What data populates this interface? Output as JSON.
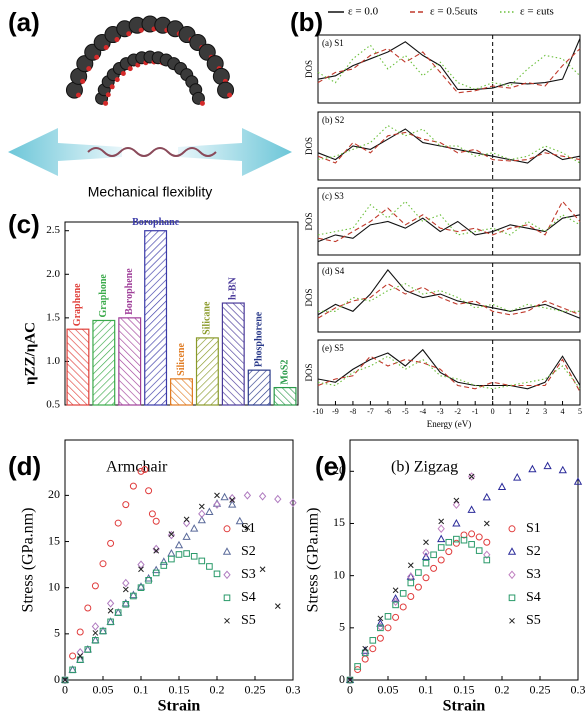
{
  "panel_a": {
    "label": "(a)",
    "caption": "Mechanical flexiblity"
  },
  "chart_data": [
    {
      "type": "line",
      "panel_label": "(b)",
      "title": "(a) S1",
      "ylabel": "DOS",
      "xlim": [
        -10,
        5
      ],
      "ylim": [
        0,
        1
      ],
      "vline": 0,
      "x": [
        -10,
        -9,
        -8,
        -7,
        -6,
        -5,
        -4,
        -3,
        -2,
        -1,
        0,
        1,
        2,
        3,
        4,
        5
      ],
      "series": [
        {
          "name": "ε = 0.0",
          "color": "#111111",
          "dash": "solid",
          "values": [
            0.35,
            0.4,
            0.55,
            0.65,
            0.75,
            0.9,
            0.7,
            0.55,
            0.2,
            0.2,
            0.22,
            0.3,
            0.28,
            0.3,
            0.35,
            0.95
          ]
        },
        {
          "name": "ε = 0.5εuts",
          "color": "#c0392b",
          "dash": "dashed",
          "values": [
            0.3,
            0.45,
            0.5,
            0.7,
            0.8,
            0.6,
            0.75,
            0.45,
            0.15,
            0.18,
            0.25,
            0.22,
            0.3,
            0.25,
            0.55,
            0.8
          ]
        },
        {
          "name": "ε = εuts",
          "color": "#6abf3a",
          "dash": "dotted",
          "values": [
            0.45,
            0.3,
            0.65,
            0.85,
            0.5,
            0.7,
            0.4,
            0.6,
            0.3,
            0.2,
            0.3,
            0.25,
            0.5,
            0.7,
            0.65,
            0.4
          ]
        }
      ]
    },
    {
      "type": "line",
      "title": "(b) S2",
      "ylabel": "DOS",
      "xlim": [
        -10,
        5
      ],
      "ylim": [
        0,
        1
      ],
      "vline": 0,
      "x": [
        -10,
        -9,
        -8,
        -7,
        -6,
        -5,
        -4,
        -3,
        -2,
        -1,
        0,
        1,
        2,
        3,
        4,
        5
      ],
      "series": [
        {
          "color": "#111111",
          "dash": "solid",
          "values": [
            0.4,
            0.3,
            0.5,
            0.45,
            0.6,
            0.75,
            0.55,
            0.5,
            0.45,
            0.4,
            0.35,
            0.3,
            0.25,
            0.45,
            0.3,
            0.35
          ]
        },
        {
          "color": "#c0392b",
          "dash": "dashed",
          "values": [
            0.35,
            0.25,
            0.55,
            0.4,
            0.65,
            0.7,
            0.6,
            0.55,
            0.4,
            0.45,
            0.3,
            0.28,
            0.3,
            0.4,
            0.35,
            0.3
          ]
        },
        {
          "color": "#6abf3a",
          "dash": "dotted",
          "values": [
            0.3,
            0.35,
            0.45,
            0.55,
            0.8,
            0.65,
            0.75,
            0.5,
            0.5,
            0.35,
            0.4,
            0.3,
            0.35,
            0.5,
            0.4,
            0.25
          ]
        }
      ]
    },
    {
      "type": "line",
      "title": "(c) S3",
      "ylabel": "DOS",
      "xlim": [
        -10,
        5
      ],
      "ylim": [
        0,
        1
      ],
      "vline": 0,
      "x": [
        -10,
        -9,
        -8,
        -7,
        -6,
        -5,
        -4,
        -3,
        -2,
        -1,
        0,
        1,
        2,
        3,
        4,
        5
      ],
      "series": [
        {
          "color": "#111111",
          "dash": "solid",
          "values": [
            0.2,
            0.3,
            0.25,
            0.45,
            0.5,
            0.4,
            0.55,
            0.35,
            0.5,
            0.3,
            0.35,
            0.45,
            0.4,
            0.35,
            0.55,
            0.6
          ]
        },
        {
          "color": "#c0392b",
          "dash": "dashed",
          "values": [
            0.25,
            0.2,
            0.35,
            0.5,
            0.7,
            0.45,
            0.6,
            0.4,
            0.35,
            0.4,
            0.3,
            0.4,
            0.45,
            0.3,
            0.8,
            0.5
          ]
        },
        {
          "color": "#6abf3a",
          "dash": "dotted",
          "values": [
            0.3,
            0.35,
            0.4,
            0.75,
            0.55,
            0.8,
            0.5,
            0.6,
            0.3,
            0.35,
            0.4,
            0.3,
            0.5,
            0.35,
            0.6,
            0.45
          ]
        }
      ]
    },
    {
      "type": "line",
      "title": "(d) S4",
      "ylabel": "DOS",
      "xlim": [
        -10,
        5
      ],
      "ylim": [
        0,
        1
      ],
      "vline": 0,
      "x": [
        -10,
        -9,
        -8,
        -7,
        -6,
        -5,
        -4,
        -3,
        -2,
        -1,
        0,
        1,
        2,
        3,
        4,
        5
      ],
      "series": [
        {
          "color": "#111111",
          "dash": "solid",
          "values": [
            0.25,
            0.4,
            0.3,
            0.55,
            0.9,
            0.6,
            0.5,
            0.55,
            0.45,
            0.4,
            0.35,
            0.3,
            0.35,
            0.4,
            0.3,
            0.2
          ]
        },
        {
          "color": "#c0392b",
          "dash": "dashed",
          "values": [
            0.2,
            0.35,
            0.45,
            0.5,
            0.7,
            0.55,
            0.65,
            0.5,
            0.4,
            0.45,
            0.3,
            0.25,
            0.3,
            0.45,
            0.35,
            0.25
          ]
        },
        {
          "color": "#6abf3a",
          "dash": "dotted",
          "values": [
            0.3,
            0.3,
            0.5,
            0.45,
            0.6,
            0.7,
            0.55,
            0.6,
            0.5,
            0.35,
            0.4,
            0.3,
            0.4,
            0.35,
            0.3,
            0.3
          ]
        }
      ]
    },
    {
      "type": "line",
      "title": "(e) S5",
      "ylabel": "DOS",
      "xlabel": "Energy (eV)",
      "xlim": [
        -10,
        5
      ],
      "ylim": [
        0,
        1
      ],
      "vline": 0,
      "xticks": [
        -10,
        -9,
        -8,
        -7,
        -6,
        -5,
        -4,
        -3,
        -2,
        -1,
        0,
        1,
        2,
        3,
        4,
        5
      ],
      "x": [
        -10,
        -9,
        -8,
        -7,
        -6,
        -5,
        -4,
        -3,
        -2,
        -1,
        0,
        1,
        2,
        3,
        4,
        5
      ],
      "series": [
        {
          "color": "#111111",
          "dash": "solid",
          "values": [
            0.4,
            0.35,
            0.55,
            0.7,
            0.8,
            0.6,
            0.85,
            0.5,
            0.35,
            0.3,
            0.3,
            0.3,
            0.25,
            0.35,
            0.75,
            0.3
          ]
        },
        {
          "color": "#c0392b",
          "dash": "dashed",
          "values": [
            0.3,
            0.4,
            0.45,
            0.75,
            0.6,
            0.7,
            0.65,
            0.55,
            0.3,
            0.25,
            0.35,
            0.3,
            0.3,
            0.3,
            0.7,
            0.2
          ]
        },
        {
          "color": "#6abf3a",
          "dash": "dotted",
          "values": [
            0.35,
            0.3,
            0.5,
            0.6,
            0.75,
            0.55,
            0.7,
            0.45,
            0.4,
            0.3,
            0.25,
            0.3,
            0.35,
            0.4,
            0.6,
            0.25
          ]
        }
      ]
    },
    {
      "type": "bar",
      "panel_label": "(c)",
      "ylabel": "ηZZ/ηAC",
      "ylim": [
        0.5,
        2.6
      ],
      "yticks": [
        0.5,
        {
          "value": 1,
          "label": "1.0"
        },
        1.5,
        {
          "value": 2,
          "label": "2.0"
        },
        2.5
      ],
      "categories": [
        "Graphene",
        "Graphone",
        "Borophene",
        "Borophane",
        "Silicene",
        "Silicane",
        "h-BN",
        "Phosphorene",
        "MoS2"
      ],
      "values": [
        1.37,
        1.47,
        1.5,
        2.5,
        0.8,
        1.27,
        1.67,
        0.9,
        0.7
      ],
      "colors": [
        "#e0403a",
        "#3aaa4a",
        "#a0409a",
        "#3a3aa8",
        "#e07a20",
        "#8a9a2a",
        "#4a3a9a",
        "#2a3a8a",
        "#2a9a4a"
      ]
    },
    {
      "type": "scatter",
      "panel_label": "(d)",
      "annotation": "Armchair",
      "xlabel": "Strain",
      "ylabel": "Stress (GPa.nm)",
      "xlim": [
        0,
        0.3
      ],
      "ylim": [
        0,
        26
      ],
      "xticks": [
        0,
        0.05,
        0.1,
        0.15,
        0.2,
        0.25,
        0.3
      ],
      "yticks": [
        0,
        5,
        10,
        15,
        20
      ],
      "legend": "center right",
      "series": [
        {
          "name": "S1",
          "color": "#e03c3c",
          "marker": "circle",
          "x": [
            0,
            0.01,
            0.02,
            0.03,
            0.04,
            0.05,
            0.06,
            0.07,
            0.08,
            0.09,
            0.1,
            0.105,
            0.11,
            0.115,
            0.12
          ],
          "values": [
            0,
            2.6,
            5.2,
            7.8,
            10.2,
            12.6,
            14.8,
            17,
            19,
            21,
            22.6,
            22.8,
            20.5,
            18,
            17.2
          ]
        },
        {
          "name": "S2",
          "color": "#5a6a9a",
          "marker": "triangle",
          "x": [
            0,
            0.01,
            0.02,
            0.03,
            0.04,
            0.05,
            0.06,
            0.07,
            0.08,
            0.09,
            0.1,
            0.11,
            0.12,
            0.13,
            0.14,
            0.15,
            0.16,
            0.17,
            0.18,
            0.19,
            0.2,
            0.21,
            0.22,
            0.23
          ],
          "values": [
            0,
            1.1,
            2.2,
            3.3,
            4.3,
            5.3,
            6.3,
            7.3,
            8.3,
            9.2,
            10.1,
            11,
            11.9,
            12.8,
            13.7,
            14.6,
            15.5,
            16.4,
            17.3,
            18.2,
            19.1,
            19.8,
            19,
            17.2
          ]
        },
        {
          "name": "S3",
          "color": "#b07cc0",
          "marker": "diamond",
          "x": [
            0,
            0.02,
            0.04,
            0.06,
            0.08,
            0.1,
            0.12,
            0.14,
            0.16,
            0.18,
            0.2,
            0.22,
            0.24,
            0.26,
            0.28,
            0.3
          ],
          "values": [
            0,
            3,
            5.8,
            8.3,
            10.5,
            12.5,
            14.2,
            15.7,
            17,
            18,
            19,
            19.7,
            20,
            19.9,
            19.6,
            19.2
          ]
        },
        {
          "name": "S4",
          "color": "#2a9a6a",
          "marker": "square",
          "x": [
            0,
            0.01,
            0.02,
            0.03,
            0.04,
            0.05,
            0.06,
            0.07,
            0.08,
            0.09,
            0.1,
            0.11,
            0.12,
            0.13,
            0.14,
            0.15,
            0.16,
            0.17,
            0.18,
            0.19,
            0.2
          ],
          "values": [
            0,
            1.1,
            2.2,
            3.3,
            4.3,
            5.3,
            6.3,
            7.3,
            8.2,
            9.1,
            10,
            10.8,
            11.6,
            12.4,
            13.1,
            13.6,
            13.7,
            13.4,
            12.9,
            12.3,
            11.5
          ]
        },
        {
          "name": "S5",
          "color": "#222222",
          "marker": "cross",
          "x": [
            0,
            0.02,
            0.04,
            0.06,
            0.08,
            0.1,
            0.12,
            0.14,
            0.16,
            0.18,
            0.2,
            0.22,
            0.24,
            0.26,
            0.28
          ],
          "values": [
            0,
            2.6,
            5.1,
            7.5,
            9.8,
            12,
            14,
            15.8,
            17.4,
            18.8,
            20,
            19.5,
            16.5,
            12,
            8
          ]
        }
      ]
    },
    {
      "type": "scatter",
      "panel_label": "(e)",
      "annotation": "(b) Zigzag",
      "xlabel": "Strain",
      "ylabel": "Stress (GPa.nm)",
      "xlim": [
        0,
        0.3
      ],
      "ylim": [
        0,
        23
      ],
      "xticks": [
        0,
        0.05,
        0.1,
        0.15,
        0.2,
        0.25,
        0.3
      ],
      "yticks": [
        0,
        5,
        10,
        15,
        20
      ],
      "legend": "center right",
      "series": [
        {
          "name": "S1",
          "color": "#e03c3c",
          "marker": "circle",
          "x": [
            0,
            0.01,
            0.02,
            0.03,
            0.04,
            0.05,
            0.06,
            0.07,
            0.08,
            0.09,
            0.1,
            0.11,
            0.12,
            0.13,
            0.14,
            0.15,
            0.16,
            0.17,
            0.18
          ],
          "values": [
            0,
            1,
            2,
            3,
            4,
            5,
            6,
            7,
            8,
            8.9,
            9.8,
            10.7,
            11.5,
            12.3,
            13.1,
            13.9,
            14,
            13.7,
            13.2
          ]
        },
        {
          "name": "S2",
          "color": "#2b2b9a",
          "marker": "triangle",
          "x": [
            0,
            0.02,
            0.04,
            0.06,
            0.08,
            0.1,
            0.12,
            0.14,
            0.16,
            0.18,
            0.2,
            0.22,
            0.24,
            0.26,
            0.28,
            0.3
          ],
          "values": [
            0,
            2.8,
            5.4,
            7.8,
            9.9,
            11.8,
            13.5,
            15,
            16.3,
            17.5,
            18.5,
            19.4,
            20.2,
            20.5,
            20.1,
            19
          ]
        },
        {
          "name": "S3",
          "color": "#c080c0",
          "marker": "diamond",
          "x": [
            0,
            0.02,
            0.04,
            0.06,
            0.08,
            0.1,
            0.12,
            0.14,
            0.16,
            0.18
          ],
          "values": [
            0,
            2.6,
            5.1,
            7.5,
            9.9,
            12.2,
            14.5,
            16.8,
            19.5,
            12
          ]
        },
        {
          "name": "S4",
          "color": "#2a9a6a",
          "marker": "square",
          "x": [
            0,
            0.01,
            0.02,
            0.03,
            0.04,
            0.05,
            0.06,
            0.07,
            0.08,
            0.09,
            0.1,
            0.11,
            0.12,
            0.13,
            0.14,
            0.15,
            0.16,
            0.17,
            0.18
          ],
          "values": [
            0,
            1.3,
            2.6,
            3.8,
            5,
            6.1,
            7.2,
            8.3,
            9.3,
            10.3,
            11.2,
            12,
            12.7,
            13.2,
            13.5,
            13.4,
            13,
            12.4,
            11.5
          ]
        },
        {
          "name": "S5",
          "color": "#222222",
          "marker": "cross",
          "x": [
            0,
            0.02,
            0.04,
            0.06,
            0.08,
            0.1,
            0.12,
            0.14,
            0.16,
            0.18
          ],
          "values": [
            0,
            3,
            5.9,
            8.6,
            11,
            13.2,
            15.2,
            17.2,
            19.5,
            15
          ]
        }
      ]
    }
  ]
}
